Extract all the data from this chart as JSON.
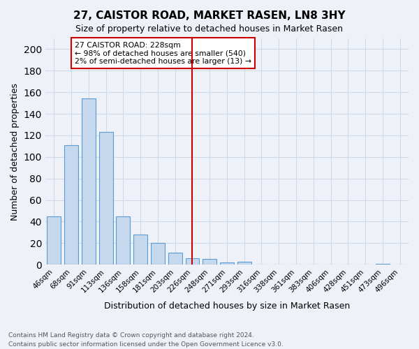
{
  "title": "27, CAISTOR ROAD, MARKET RASEN, LN8 3HY",
  "subtitle": "Size of property relative to detached houses in Market Rasen",
  "xlabel": "Distribution of detached houses by size in Market Rasen",
  "ylabel": "Number of detached properties",
  "footnote1": "Contains HM Land Registry data © Crown copyright and database right 2024.",
  "footnote2": "Contains public sector information licensed under the Open Government Licence v3.0.",
  "categories": [
    "46sqm",
    "68sqm",
    "91sqm",
    "113sqm",
    "136sqm",
    "158sqm",
    "181sqm",
    "203sqm",
    "226sqm",
    "248sqm",
    "271sqm",
    "293sqm",
    "316sqm",
    "338sqm",
    "361sqm",
    "383sqm",
    "406sqm",
    "428sqm",
    "451sqm",
    "473sqm",
    "496sqm"
  ],
  "values": [
    45,
    111,
    154,
    123,
    45,
    28,
    20,
    11,
    6,
    5,
    2,
    3,
    0,
    0,
    0,
    0,
    0,
    0,
    0,
    1,
    0
  ],
  "bar_color": "#c5d8ed",
  "bar_edge_color": "#5b9bd5",
  "grid_color": "#d0d8e8",
  "background_color": "#eef2f8",
  "vline_x_index": 8,
  "vline_color": "#cc0000",
  "annotation_title": "27 CAISTOR ROAD: 228sqm",
  "annotation_line1": "← 98% of detached houses are smaller (540)",
  "annotation_line2": "2% of semi-detached houses are larger (13) →",
  "annotation_bg": "#ffffff",
  "ylim": [
    0,
    210
  ],
  "yticks": [
    0,
    20,
    40,
    60,
    80,
    100,
    120,
    140,
    160,
    180,
    200
  ]
}
